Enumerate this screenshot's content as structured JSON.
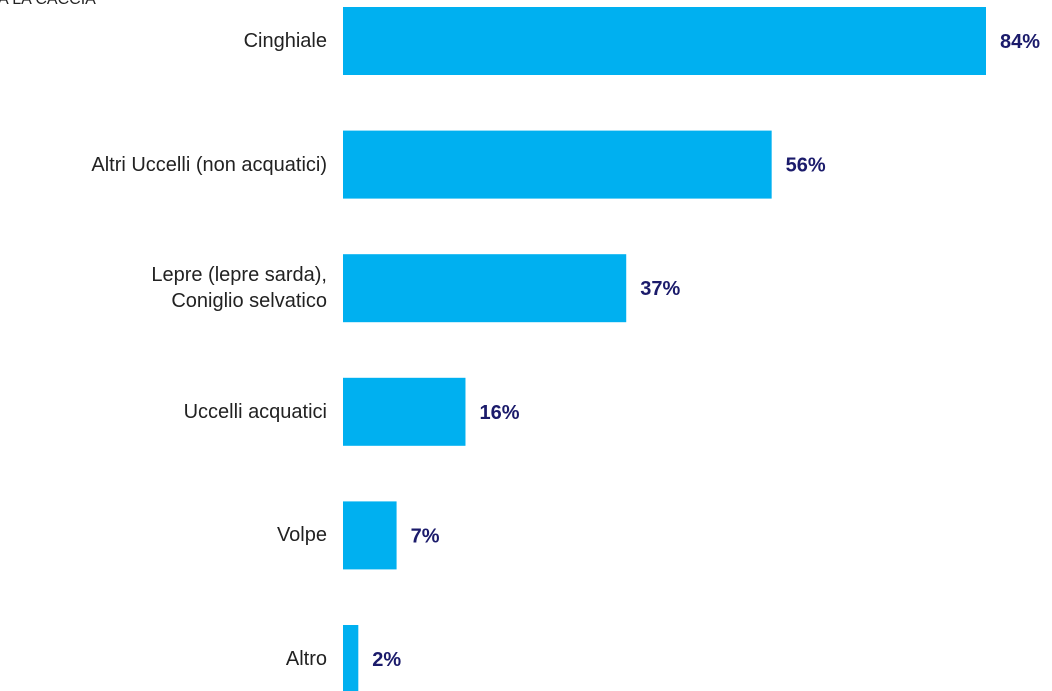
{
  "chart_data": {
    "type": "bar",
    "orientation": "horizontal",
    "title": "A LA CACCIA",
    "categories": [
      "Cinghiale",
      "Altri Uccelli (non acquatici)",
      "Lepre (lepre sarda),\nConiglio selvatico",
      "Uccelli acquatici",
      "Volpe",
      "Altro"
    ],
    "values": [
      84,
      56,
      37,
      16,
      7,
      2
    ],
    "value_labels": [
      "84%",
      "56%",
      "37%",
      "16%",
      "7%",
      "2%"
    ],
    "color": "#00b0f0",
    "xlim": [
      0,
      84
    ]
  }
}
